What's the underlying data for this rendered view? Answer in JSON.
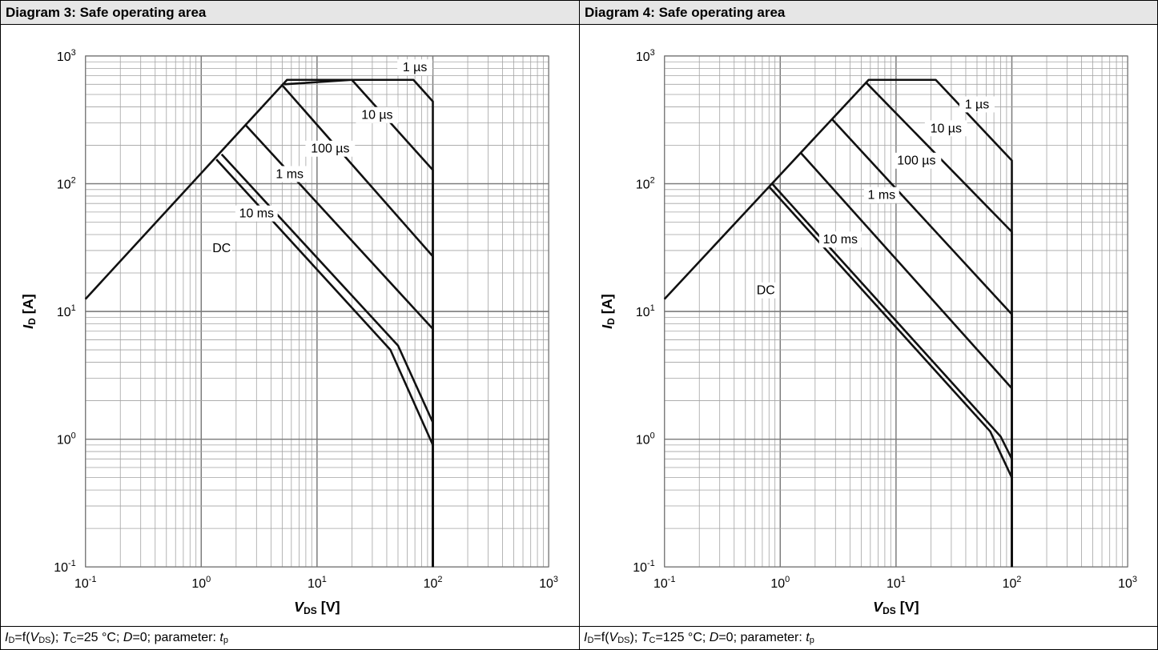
{
  "chart_data": [
    {
      "type": "line",
      "title": "Diagram 3: Safe operating area",
      "caption": {
        "i": "I",
        "d_sub": "D",
        "eq_f": "=f(",
        "v": "V",
        "ds_sub": "DS",
        "sep1": "); ",
        "t": "T",
        "c_sub": "C",
        "tc_val": "=25 °C; ",
        "d_sym": "D",
        "d_val": "=0; parameter: ",
        "tp": "t",
        "p_sub": "p"
      },
      "xlabel": {
        "sym": "V",
        "sub": "DS",
        "unit": " [V]"
      },
      "ylabel": {
        "sym": "I",
        "sub": "D",
        "unit": " [A]"
      },
      "xscale": "log",
      "yscale": "log",
      "xlim": [
        0.1,
        1000
      ],
      "ylim": [
        0.1,
        1000
      ],
      "x_ticks": [
        {
          "base": "10",
          "exp": "-1"
        },
        {
          "base": "10",
          "exp": "0"
        },
        {
          "base": "10",
          "exp": "1"
        },
        {
          "base": "10",
          "exp": "2"
        },
        {
          "base": "10",
          "exp": "3"
        }
      ],
      "y_ticks": [
        {
          "base": "10",
          "exp": "-1"
        },
        {
          "base": "10",
          "exp": "0"
        },
        {
          "base": "10",
          "exp": "1"
        },
        {
          "base": "10",
          "exp": "2"
        },
        {
          "base": "10",
          "exp": "3"
        }
      ],
      "grid": true,
      "series": [
        {
          "name": "1 µs",
          "label_at": [
            70,
            780
          ],
          "points": [
            [
              0.1,
              12.5
            ],
            [
              5.5,
              650
            ],
            [
              68,
              650
            ],
            [
              100,
              440
            ],
            [
              100,
              0.1
            ]
          ]
        },
        {
          "name": "10 µs",
          "label_at": [
            33,
            330
          ],
          "points": [
            [
              5.2,
              600
            ],
            [
              20,
              650
            ],
            [
              100,
              128
            ],
            [
              100,
              0.1
            ]
          ]
        },
        {
          "name": "100 µs",
          "label_at": [
            13,
            180
          ],
          "points": [
            [
              5.0,
              590
            ],
            [
              100,
              27
            ],
            [
              100,
              0.1
            ]
          ]
        },
        {
          "name": "1 ms",
          "label_at": [
            5.8,
            114
          ],
          "points": [
            [
              2.4,
              290
            ],
            [
              100,
              7.3
            ],
            [
              100,
              0.1
            ]
          ]
        },
        {
          "name": "10 ms",
          "label_at": [
            3.0,
            56
          ],
          "points": [
            [
              1.5,
              170
            ],
            [
              50,
              5.4
            ],
            [
              100,
              1.35
            ],
            [
              100,
              0.1
            ]
          ]
        },
        {
          "name": "DC",
          "label_at": [
            1.5,
            30
          ],
          "points": [
            [
              1.35,
              155
            ],
            [
              43,
              5.0
            ],
            [
              100,
              0.9
            ],
            [
              100,
              0.1
            ]
          ]
        }
      ]
    },
    {
      "type": "line",
      "title": "Diagram 4: Safe operating area",
      "caption": {
        "i": "I",
        "d_sub": "D",
        "eq_f": "=f(",
        "v": "V",
        "ds_sub": "DS",
        "sep1": "); ",
        "t": "T",
        "c_sub": "C",
        "tc_val": "=125 °C; ",
        "d_sym": "D",
        "d_val": "=0; parameter: ",
        "tp": "t",
        "p_sub": "p"
      },
      "xlabel": {
        "sym": "V",
        "sub": "DS",
        "unit": " [V]"
      },
      "ylabel": {
        "sym": "I",
        "sub": "D",
        "unit": " [A]"
      },
      "xscale": "log",
      "yscale": "log",
      "xlim": [
        0.1,
        1000
      ],
      "ylim": [
        0.1,
        1000
      ],
      "x_ticks": [
        {
          "base": "10",
          "exp": "-1"
        },
        {
          "base": "10",
          "exp": "0"
        },
        {
          "base": "10",
          "exp": "1"
        },
        {
          "base": "10",
          "exp": "2"
        },
        {
          "base": "10",
          "exp": "3"
        }
      ],
      "y_ticks": [
        {
          "base": "10",
          "exp": "-1"
        },
        {
          "base": "10",
          "exp": "0"
        },
        {
          "base": "10",
          "exp": "1"
        },
        {
          "base": "10",
          "exp": "2"
        },
        {
          "base": "10",
          "exp": "3"
        }
      ],
      "grid": true,
      "series": [
        {
          "name": "1 µs",
          "label_at": [
            50,
            400
          ],
          "points": [
            [
              0.1,
              12.5
            ],
            [
              5.8,
              650
            ],
            [
              22,
              650
            ],
            [
              100,
              152
            ],
            [
              100,
              0.1
            ]
          ]
        },
        {
          "name": "10 µs",
          "label_at": [
            27,
            260
          ],
          "points": [
            [
              5.5,
              620
            ],
            [
              100,
              42
            ],
            [
              100,
              0.1
            ]
          ]
        },
        {
          "name": "100 µs",
          "label_at": [
            15,
            145
          ],
          "points": [
            [
              2.8,
              320
            ],
            [
              100,
              9.5
            ],
            [
              100,
              0.1
            ]
          ]
        },
        {
          "name": "1 ms",
          "label_at": [
            7.5,
            78
          ],
          "points": [
            [
              1.5,
              175
            ],
            [
              100,
              2.5
            ],
            [
              100,
              0.1
            ]
          ]
        },
        {
          "name": "10 ms",
          "label_at": [
            3.3,
            35
          ],
          "points": [
            [
              0.85,
              100
            ],
            [
              80,
              1.05
            ],
            [
              100,
              0.7
            ],
            [
              100,
              0.1
            ]
          ]
        },
        {
          "name": "DC",
          "label_at": [
            0.75,
            14
          ],
          "points": [
            [
              0.8,
              95
            ],
            [
              65,
              1.15
            ],
            [
              100,
              0.5
            ],
            [
              100,
              0.1
            ]
          ]
        }
      ]
    }
  ]
}
